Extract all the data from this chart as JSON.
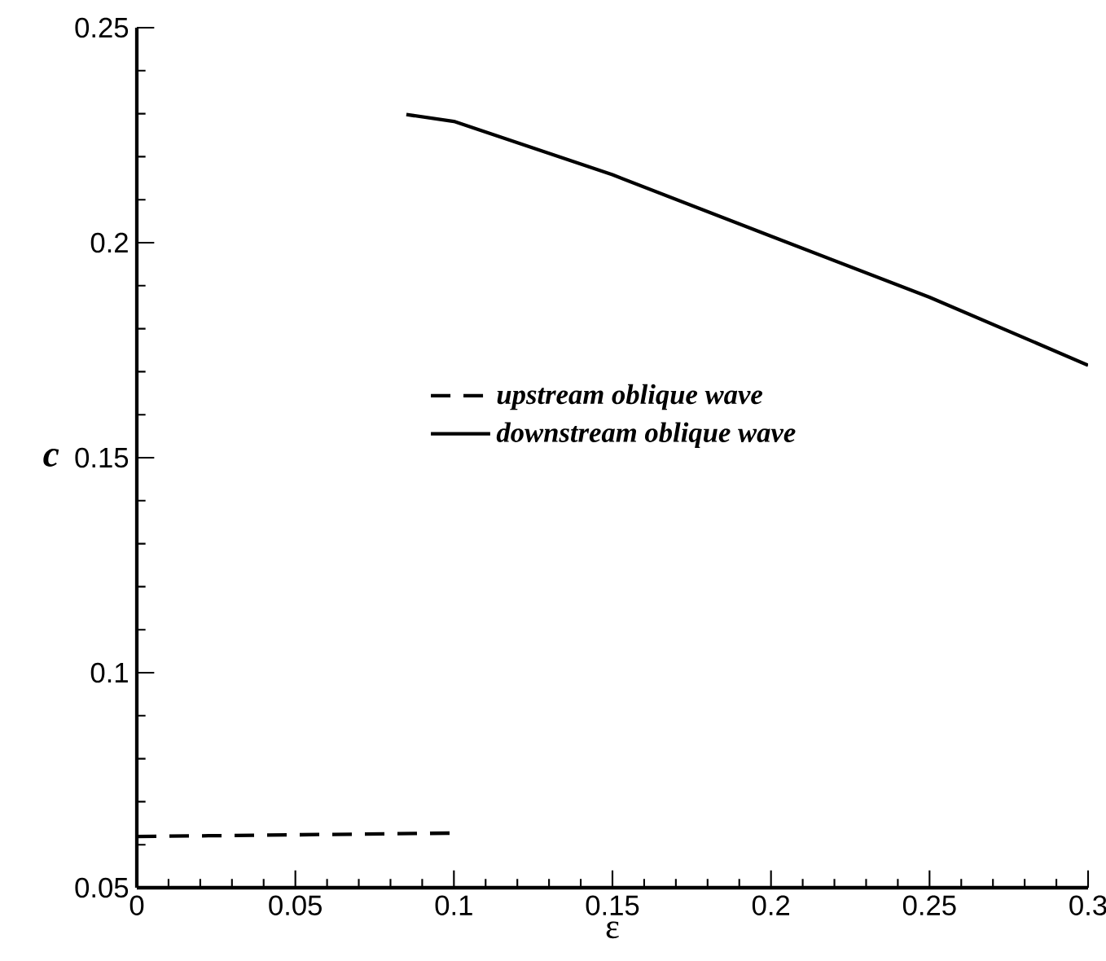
{
  "chart_data": {
    "type": "line",
    "xlabel": "ε",
    "ylabel": "c",
    "xlim": [
      0,
      0.3
    ],
    "ylim": [
      0.05,
      0.25
    ],
    "xticks": [
      0,
      0.05,
      0.1,
      0.15,
      0.2,
      0.25,
      0.3
    ],
    "yticks": [
      0.05,
      0.1,
      0.15,
      0.2,
      0.25
    ],
    "legend": "center right",
    "grid": false,
    "marker": "none",
    "series": [
      {
        "name": "upstream oblique wave",
        "color": "#000000",
        "line_style": "dashed",
        "x": [
          0,
          0.1
        ],
        "values": [
          0.0619,
          0.0627
        ]
      },
      {
        "name": "downstream oblique wave",
        "color": "#000000",
        "line_style": "solid",
        "x": [
          0.085,
          0.1,
          0.15,
          0.2,
          0.25,
          0.3
        ],
        "values": [
          0.2298,
          0.2282,
          0.2158,
          0.2015,
          0.1873,
          0.1715
        ]
      }
    ]
  }
}
